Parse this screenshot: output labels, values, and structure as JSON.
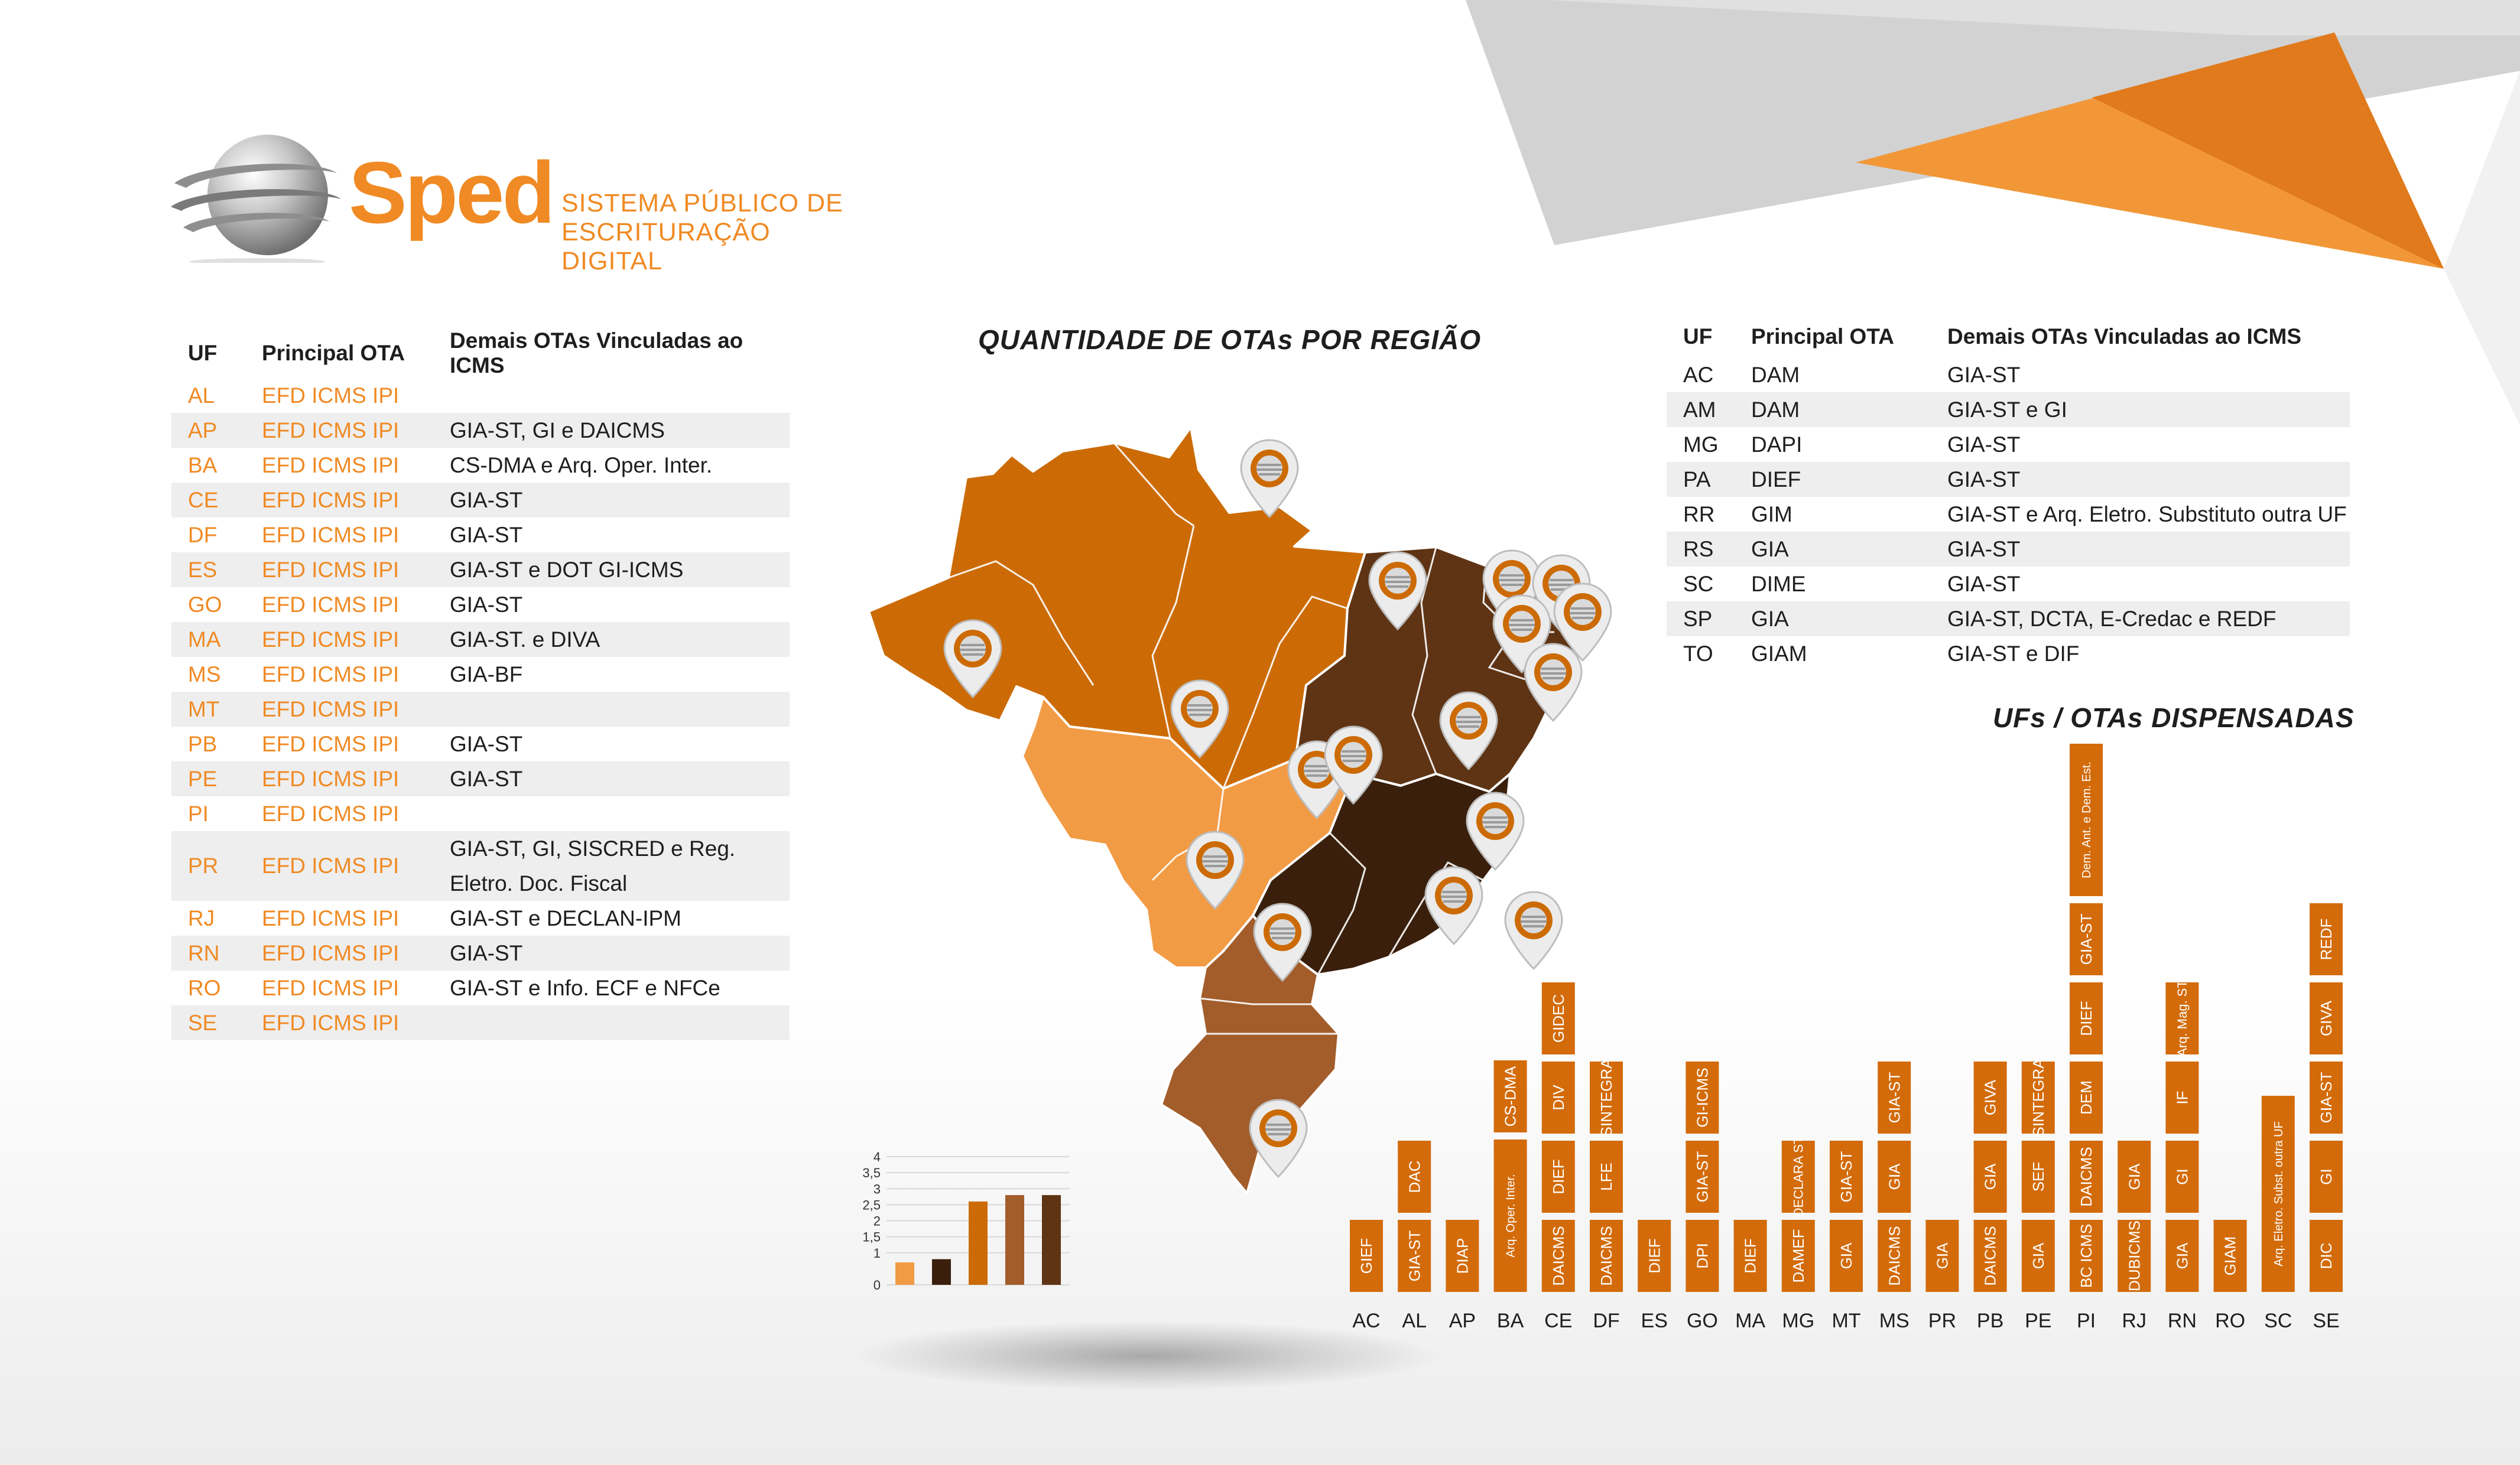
{
  "logo": {
    "wordmark": "Sped",
    "subtitle_line1": "SISTEMA PÚBLICO DE",
    "subtitle_line2": "ESCRITURAÇÃO DIGITAL"
  },
  "colors": {
    "brand_orange": "#f08a24",
    "bar_fill": "#d36b0a",
    "region_north": "#cc6b06",
    "region_centerwest": "#f29b45",
    "region_northeast": "#5e3414",
    "region_southeast": "#3a200c",
    "region_south": "#a25d2b"
  },
  "left_table": {
    "headers": [
      "UF",
      "Principal OTA",
      "Demais OTAs Vinculadas ao ICMS"
    ],
    "rows": [
      [
        "AL",
        "EFD ICMS IPI",
        ""
      ],
      [
        "AP",
        "EFD ICMS IPI",
        "GIA-ST, GI e DAICMS"
      ],
      [
        "BA",
        "EFD ICMS IPI",
        "CS-DMA e Arq. Oper. Inter."
      ],
      [
        "CE",
        "EFD ICMS IPI",
        "GIA-ST"
      ],
      [
        "DF",
        "EFD ICMS IPI",
        "GIA-ST"
      ],
      [
        "ES",
        "EFD ICMS IPI",
        "GIA-ST e DOT GI-ICMS"
      ],
      [
        "GO",
        "EFD ICMS IPI",
        "GIA-ST"
      ],
      [
        "MA",
        "EFD ICMS IPI",
        "GIA-ST. e DIVA"
      ],
      [
        "MS",
        "EFD ICMS IPI",
        "GIA-BF"
      ],
      [
        "MT",
        "EFD ICMS IPI",
        ""
      ],
      [
        "PB",
        "EFD ICMS IPI",
        "GIA-ST"
      ],
      [
        "PE",
        "EFD ICMS IPI",
        "GIA-ST"
      ],
      [
        "PI",
        "EFD ICMS IPI",
        ""
      ],
      [
        "PR",
        "EFD ICMS IPI",
        "GIA-ST, GI, SISCRED e Reg. Eletro. Doc. Fiscal"
      ],
      [
        "RJ",
        "EFD ICMS IPI",
        "GIA-ST e DECLAN-IPM"
      ],
      [
        "RN",
        "EFD ICMS IPI",
        "GIA-ST"
      ],
      [
        "RO",
        "EFD ICMS IPI",
        "GIA-ST e Info. ECF e NFCe"
      ],
      [
        "SE",
        "EFD ICMS IPI",
        ""
      ]
    ]
  },
  "right_table": {
    "headers": [
      "UF",
      "Principal OTA",
      "Demais OTAs Vinculadas ao ICMS"
    ],
    "rows": [
      [
        "AC",
        "DAM",
        "GIA-ST"
      ],
      [
        "AM",
        "DAM",
        "GIA-ST e GI"
      ],
      [
        "MG",
        "DAPI",
        "GIA-ST"
      ],
      [
        "PA",
        "DIEF",
        "GIA-ST"
      ],
      [
        "RR",
        "GIM",
        "GIA-ST e Arq. Eletro. Substituto outra UF"
      ],
      [
        "RS",
        "GIA",
        "GIA-ST"
      ],
      [
        "SC",
        "DIME",
        "GIA-ST"
      ],
      [
        "SP",
        "GIA",
        "GIA-ST, DCTA, E-Credac e REDF"
      ],
      [
        "TO",
        "GIAM",
        "GIA-ST e DIF"
      ]
    ]
  },
  "map": {
    "title": "QUANTIDADE DE OTAs POR REGIÃO",
    "icon": "location-pin-icon"
  },
  "chart_data": [
    {
      "type": "bar",
      "title": "",
      "categories": [
        "",
        "",
        "",
        "",
        ""
      ],
      "values": [
        0.7,
        0.8,
        2.6,
        2.8,
        2.8
      ],
      "colors": [
        "#f29b45",
        "#3a200c",
        "#cc6b06",
        "#a25d2b",
        "#5e3414"
      ],
      "ylim": [
        0,
        4
      ],
      "yticks": [
        "0",
        "1",
        "1,5",
        "2",
        "2,5",
        "3",
        "3,5",
        "4"
      ],
      "grid": true
    },
    {
      "type": "bar",
      "title": "UFs / OTAs DISPENSADAS",
      "categories": [
        "AC",
        "AL",
        "AP",
        "BA",
        "CE",
        "DF",
        "ES",
        "GO",
        "MA",
        "MG",
        "MT",
        "MS",
        "PR",
        "PB",
        "PE",
        "PI",
        "RJ",
        "RN",
        "RO",
        "SC",
        "SE"
      ],
      "stacks": [
        [
          "GIEF"
        ],
        [
          "GIA-ST",
          "DAC"
        ],
        [
          "DIAP"
        ],
        [
          "Arq. Oper. Inter.",
          "CS-DMA"
        ],
        [
          "DAICMS",
          "DIEF",
          "DIV",
          "GIDEC"
        ],
        [
          "DAICMS",
          "LFE",
          "SINTEGRA"
        ],
        [
          "DIEF"
        ],
        [
          "DPI",
          "GIA-ST",
          "GI-ICMS"
        ],
        [
          "DIEF"
        ],
        [
          "DAMEF",
          "DECLARA ST"
        ],
        [
          "GIA",
          "GIA-ST"
        ],
        [
          "DAICMS",
          "GIA",
          "GIA-ST"
        ],
        [
          "GIA"
        ],
        [
          "DAICMS",
          "GIA",
          "GIVA"
        ],
        [
          "GIA",
          "SEF",
          "SINTEGRA"
        ],
        [
          "BC ICMS",
          "DAICMS",
          "DEM",
          "DIEF",
          "GIA-ST",
          "Dem. Ant. e Dem. Est."
        ],
        [
          "DUBICMS",
          "GIA"
        ],
        [
          "GIA",
          "GI",
          "IF",
          "Arq. Mag. ST"
        ],
        [
          "GIAM"
        ],
        [
          "Arq. Eletro. Subst. outra UF"
        ],
        [
          "DIC",
          "GI",
          "GIA-ST",
          "GIVA",
          "REDF"
        ]
      ]
    }
  ]
}
